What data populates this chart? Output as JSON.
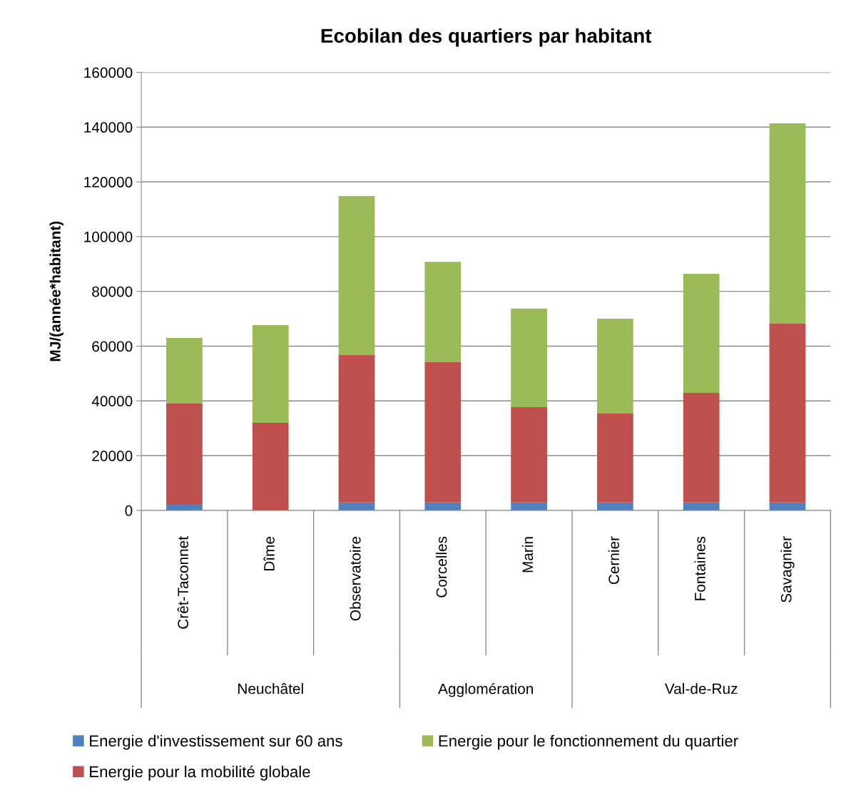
{
  "chart_data": {
    "type": "bar",
    "title": "Ecobilan des quartiers par habitant",
    "ylabel": "MJ/(année*habitant)",
    "categories": [
      "Crêt-Taconnet",
      "Dîme",
      "Observatoire",
      "Corcelles",
      "Marin",
      "Cernier",
      "Fontaines",
      "Savagnier"
    ],
    "stacked": true,
    "series": [
      {
        "name": "Energie d'investissement sur 60 ans",
        "color": "#4f81bd",
        "values": [
          2300,
          0,
          2900,
          2900,
          2900,
          2900,
          2900,
          2900
        ]
      },
      {
        "name": "Energie pour la mobilité globale",
        "color": "#c0504d",
        "values": [
          36700,
          32000,
          53800,
          51200,
          34800,
          32500,
          40000,
          65300
        ]
      },
      {
        "name": "Energie pour le fonctionnement du quartier",
        "color": "#9bbb59",
        "values": [
          24000,
          35700,
          58100,
          36700,
          36000,
          34600,
          43500,
          73200
        ]
      }
    ],
    "annotations": [
      "Neuchâtel",
      "Agglomération",
      "Val-de-Ruz"
    ],
    "ylim": [
      0,
      160000
    ],
    "yticks": [
      0,
      20000,
      40000,
      60000,
      80000,
      100000,
      120000,
      140000,
      160000
    ],
    "grid": "y",
    "legend": "bottom"
  }
}
